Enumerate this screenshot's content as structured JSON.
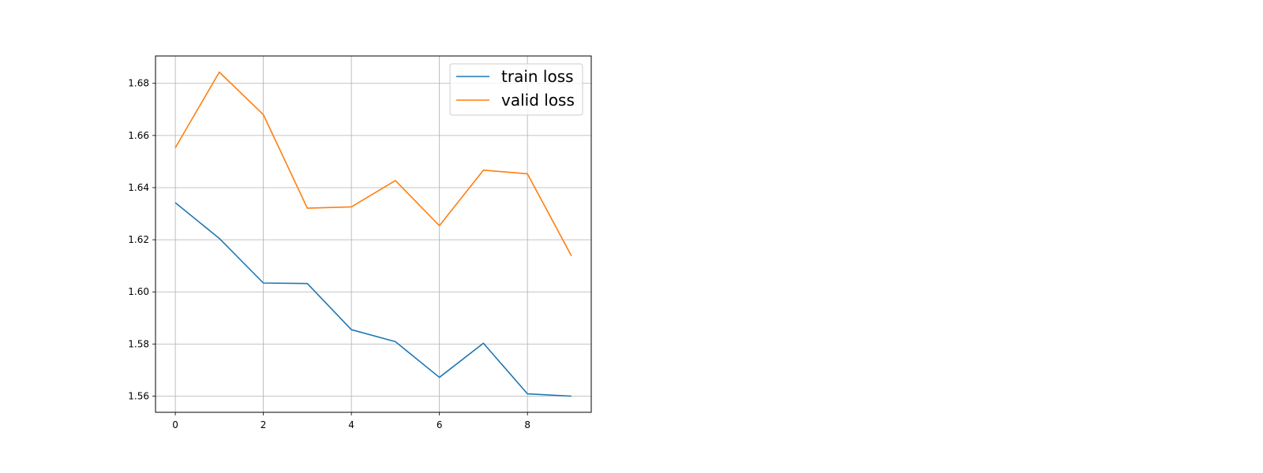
{
  "chart_data": {
    "type": "line",
    "x": [
      0,
      1,
      2,
      3,
      4,
      5,
      6,
      7,
      8,
      9
    ],
    "series": [
      {
        "name": "train loss",
        "color": "#1f77b4",
        "values": [
          1.6342,
          1.6205,
          1.6034,
          1.6032,
          1.5855,
          1.5809,
          1.5672,
          1.5803,
          1.5609,
          1.56
        ]
      },
      {
        "name": "valid loss",
        "color": "#ff7f0e",
        "values": [
          1.6553,
          1.6843,
          1.668,
          1.6321,
          1.6326,
          1.6427,
          1.6254,
          1.6467,
          1.6453,
          1.6138
        ]
      }
    ],
    "xticks": [
      "0",
      "2",
      "4",
      "6",
      "8"
    ],
    "yticks": [
      "1.56",
      "1.58",
      "1.60",
      "1.62",
      "1.64",
      "1.66",
      "1.68"
    ],
    "xlim": [
      -0.45,
      9.45
    ],
    "ylim": [
      1.5538,
      1.6905
    ],
    "grid": true,
    "legend_position": "top-right",
    "title": "",
    "xlabel": "",
    "ylabel": ""
  }
}
